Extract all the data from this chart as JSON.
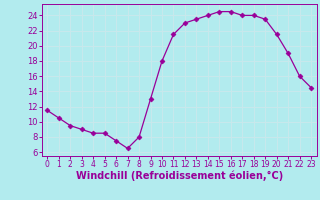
{
  "x": [
    0,
    1,
    2,
    3,
    4,
    5,
    6,
    7,
    8,
    9,
    10,
    11,
    12,
    13,
    14,
    15,
    16,
    17,
    18,
    19,
    20,
    21,
    22,
    23
  ],
  "y": [
    11.5,
    10.5,
    9.5,
    9.0,
    8.5,
    8.5,
    7.5,
    6.5,
    8.0,
    13.0,
    18.0,
    21.5,
    23.0,
    23.5,
    24.0,
    24.5,
    24.5,
    24.0,
    24.0,
    23.5,
    21.5,
    19.0,
    16.0,
    14.5
  ],
  "line_color": "#990099",
  "marker": "D",
  "markersize": 2.5,
  "linewidth": 0.9,
  "xlabel": "Windchill (Refroidissement éolien,°C)",
  "xlabel_fontsize": 7,
  "xlabel_color": "#990099",
  "background_color": "#b2ebee",
  "grid_color": "#c8e8ec",
  "tick_color": "#990099",
  "spine_color": "#990099",
  "xlim": [
    -0.5,
    23.5
  ],
  "ylim": [
    5.5,
    25.5
  ],
  "yticks": [
    6,
    8,
    10,
    12,
    14,
    16,
    18,
    20,
    22,
    24
  ],
  "xticks": [
    0,
    1,
    2,
    3,
    4,
    5,
    6,
    7,
    8,
    9,
    10,
    11,
    12,
    13,
    14,
    15,
    16,
    17,
    18,
    19,
    20,
    21,
    22,
    23
  ],
  "tick_fontsize": 5.5,
  "ytick_fontsize": 6
}
